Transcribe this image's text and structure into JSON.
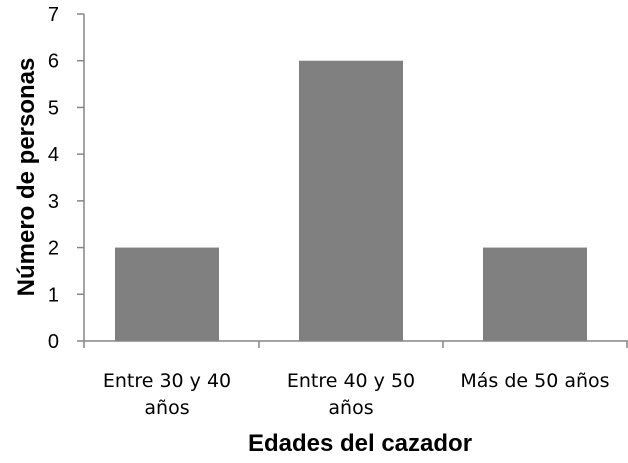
{
  "chart_data": {
    "type": "bar",
    "categories": [
      [
        "Entre 30 y 40",
        "años"
      ],
      [
        "Entre 40 y 50",
        "años"
      ],
      [
        "Más de 50 años"
      ]
    ],
    "values": [
      2,
      6,
      2
    ],
    "xlabel": "Edades del cazador",
    "ylabel": "Número de personas",
    "ylim": [
      0,
      7
    ],
    "yticks": [
      0,
      1,
      2,
      3,
      4,
      5,
      6,
      7
    ],
    "grid": false,
    "legend": "none",
    "bar_color": "#808080"
  }
}
